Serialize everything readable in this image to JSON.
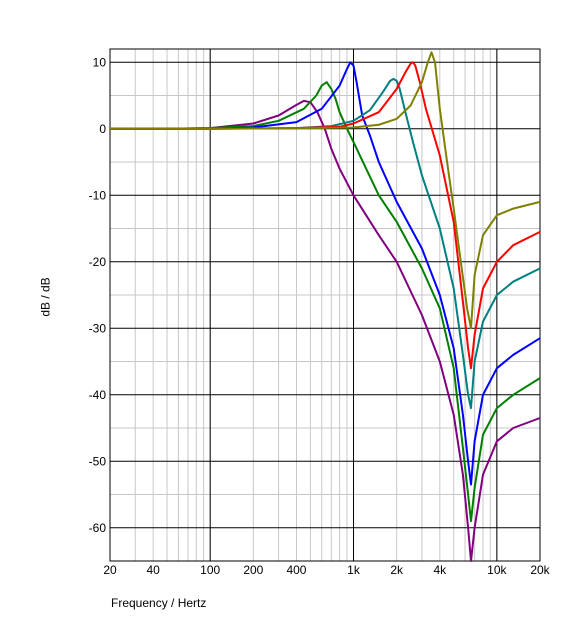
{
  "chart_data": {
    "type": "line",
    "title": "",
    "xlabel": "Frequency / Hertz",
    "ylabel": "dB / dB",
    "x_scale": "log",
    "xlim": [
      20,
      20000
    ],
    "ylim": [
      -65,
      12
    ],
    "grid": true,
    "x_ticks": [
      {
        "value": 20,
        "label": "20"
      },
      {
        "value": 40,
        "label": "40"
      },
      {
        "value": 100,
        "label": "100"
      },
      {
        "value": 200,
        "label": "200"
      },
      {
        "value": 400,
        "label": "400"
      },
      {
        "value": 1000,
        "label": "1k"
      },
      {
        "value": 2000,
        "label": "2k"
      },
      {
        "value": 4000,
        "label": "4k"
      },
      {
        "value": 10000,
        "label": "10k"
      },
      {
        "value": 20000,
        "label": "20k"
      }
    ],
    "y_ticks": [
      {
        "value": 10,
        "label": "10"
      },
      {
        "value": 0,
        "label": "0"
      },
      {
        "value": -10,
        "label": "-10"
      },
      {
        "value": -20,
        "label": "-20"
      },
      {
        "value": -30,
        "label": "-30"
      },
      {
        "value": -40,
        "label": "-40"
      },
      {
        "value": -50,
        "label": "-50"
      },
      {
        "value": -60,
        "label": "-60"
      }
    ],
    "series": [
      {
        "color": "#800080",
        "x": [
          20,
          50,
          100,
          200,
          300,
          400,
          450,
          500,
          560,
          630,
          700,
          800,
          1000,
          1500,
          2000,
          3000,
          4000,
          5000,
          5800,
          6300,
          6600,
          7000,
          8000,
          10000,
          13000,
          20000
        ],
        "y": [
          0,
          0,
          0.1,
          0.8,
          2.0,
          3.6,
          4.2,
          4.0,
          2.5,
          0,
          -3,
          -6,
          -10,
          -16,
          -20,
          -28,
          -35,
          -43,
          -52,
          -60,
          -65,
          -60,
          -52,
          -47,
          -45,
          -43.5
        ]
      },
      {
        "color": "#008000",
        "x": [
          20,
          50,
          100,
          200,
          300,
          450,
          550,
          600,
          650,
          700,
          750,
          800,
          900,
          1000,
          1500,
          2000,
          3000,
          4000,
          5000,
          5800,
          6300,
          6600,
          7000,
          8000,
          10000,
          13000,
          20000
        ],
        "y": [
          0,
          0,
          0.1,
          0.4,
          1.2,
          3.0,
          5.0,
          6.5,
          7.0,
          6.0,
          4.5,
          2.5,
          0,
          -2,
          -10,
          -14,
          -21,
          -27,
          -36,
          -48,
          -55,
          -59,
          -54,
          -46,
          -42,
          -40,
          -37.5
        ]
      },
      {
        "color": "#0000FF",
        "x": [
          20,
          50,
          100,
          200,
          400,
          600,
          800,
          900,
          950,
          1000,
          1050,
          1150,
          1300,
          1500,
          2000,
          3000,
          4000,
          5000,
          5800,
          6300,
          6600,
          7000,
          8000,
          10000,
          13000,
          20000
        ],
        "y": [
          0,
          0,
          0,
          0.2,
          1.0,
          3.0,
          6.5,
          9.0,
          10.0,
          9.5,
          7.0,
          2.0,
          -1.0,
          -5,
          -11,
          -18,
          -25,
          -33,
          -43,
          -50,
          -53.5,
          -47,
          -40,
          -36,
          -34,
          -31.5
        ]
      },
      {
        "color": "#008080",
        "x": [
          20,
          100,
          400,
          700,
          1000,
          1300,
          1600,
          1800,
          1900,
          2000,
          2100,
          2300,
          2600,
          3000,
          4000,
          5000,
          5800,
          6300,
          6600,
          7000,
          8000,
          10000,
          13000,
          20000
        ],
        "y": [
          0,
          0,
          0.1,
          0.4,
          1.2,
          2.8,
          5.5,
          7.2,
          7.5,
          7.2,
          6.0,
          2.5,
          -2,
          -7,
          -15,
          -24,
          -34,
          -40,
          -42,
          -35,
          -29,
          -25,
          -23,
          -21
        ]
      },
      {
        "color": "#FF0000",
        "x": [
          20,
          100,
          400,
          800,
          1000,
          1500,
          2000,
          2300,
          2500,
          2600,
          2700,
          2900,
          3200,
          4000,
          5000,
          5800,
          6300,
          6600,
          7000,
          8000,
          10000,
          13000,
          20000
        ],
        "y": [
          0,
          0,
          0.1,
          0.3,
          0.8,
          2.5,
          6.0,
          8.5,
          9.8,
          10.0,
          9.5,
          7.0,
          3.0,
          -4,
          -14,
          -26,
          -33,
          -36,
          -31,
          -24,
          -20,
          -17.5,
          -15.5
        ]
      },
      {
        "color": "#808000",
        "x": [
          20,
          100,
          500,
          1000,
          1500,
          2000,
          2500,
          3000,
          3300,
          3500,
          3700,
          4000,
          4500,
          5000,
          5600,
          6200,
          6600,
          7000,
          8000,
          10000,
          13000,
          20000
        ],
        "y": [
          0,
          0,
          0.1,
          0.2,
          0.6,
          1.5,
          3.5,
          7.0,
          10.0,
          11.5,
          10.0,
          3.0,
          -5,
          -12,
          -20,
          -27,
          -30,
          -22,
          -16,
          -13,
          -12,
          -11
        ]
      }
    ]
  }
}
